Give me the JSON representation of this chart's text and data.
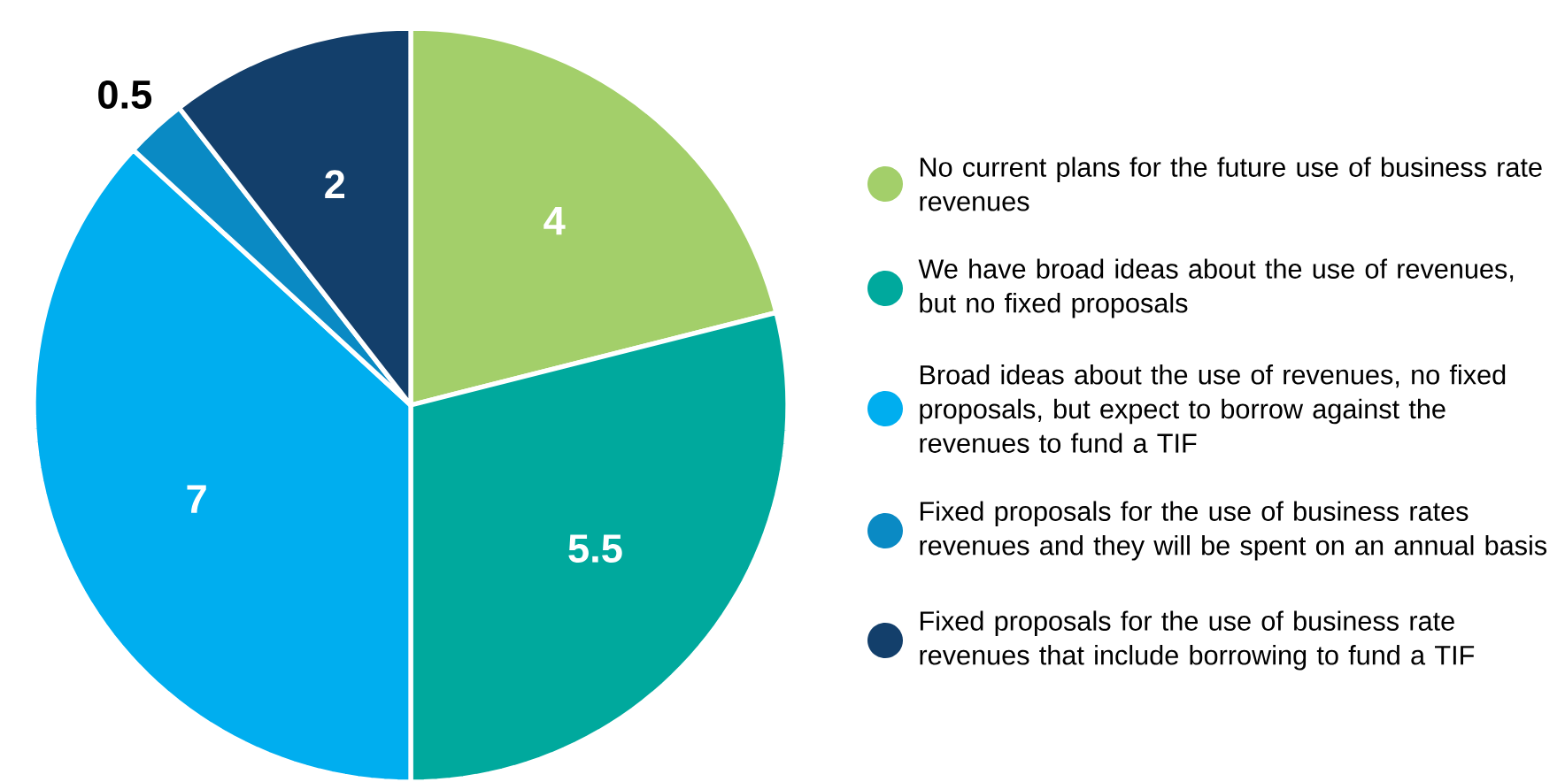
{
  "chart_data": {
    "type": "pie",
    "categories": [
      "No current plans for the future use of business rate revenues",
      "We have broad ideas about the use of revenues, but no fixed proposals",
      "Broad ideas about the use of revenues, no fixed proposals, but expect to borrow against the revenues to fund a TIF",
      "Fixed proposals for the use of business rates revenues and they will be spent on an annual basis",
      "Fixed proposals for the use of business rate revenues that include borrowing to fund a TIF"
    ],
    "values": [
      4,
      5.5,
      7,
      0.5,
      2
    ],
    "colors": [
      "#a3cf6a",
      "#00a99d",
      "#00aeef",
      "#0a8ac4",
      "#133f6b"
    ],
    "data_labels": true,
    "legend": "right"
  }
}
